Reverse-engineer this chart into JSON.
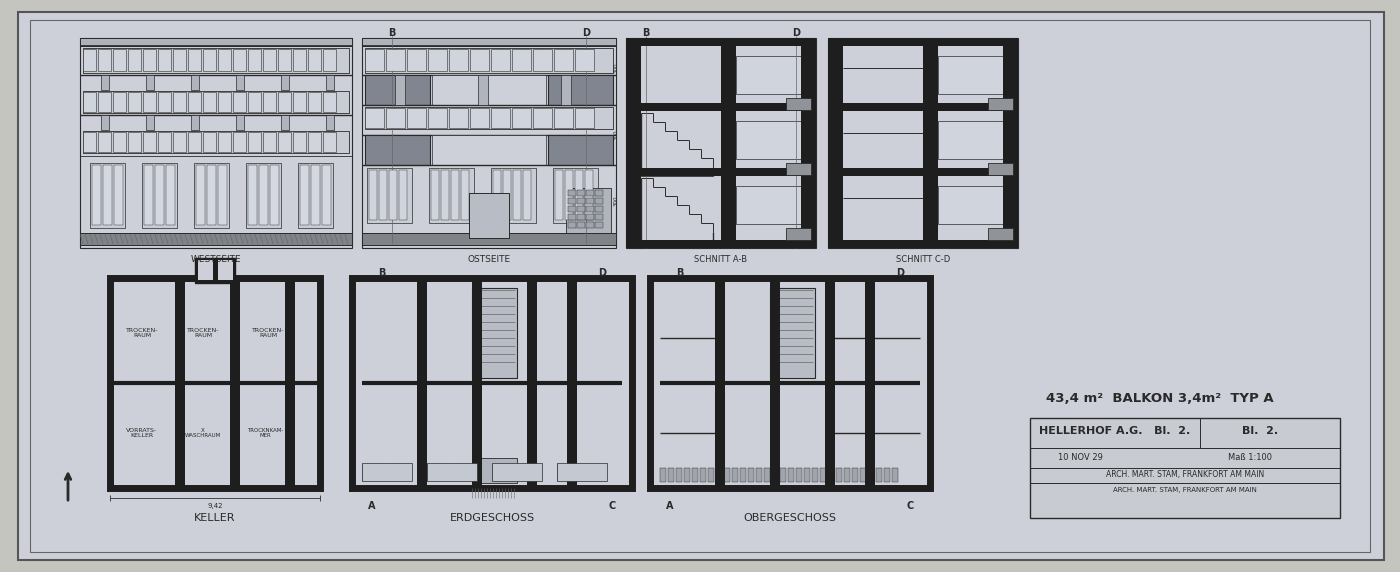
{
  "bg_outer": "#c4c5be",
  "bg_paper": "#cdd0d8",
  "lc": "#2a2a2a",
  "thick_fc": "#1e1e1e",
  "gray_fill": "#9a9da5",
  "light_fill": "#b8bcc5",
  "window_fill": "#d8dae0",
  "window_dark": "#8a8e96",
  "title_text": "43,4 m²  BALKON 3,4m²  TYP A",
  "sub1": "HELLERHOF A.G.   Bl.  2.",
  "sub2": "10 NOV 29",
  "sub3": "Maß 1:100",
  "sub4": "ARCH. MART. STAM, FRANKFORT AM MAIN",
  "lbl_west": "WESTSEITE",
  "lbl_ost": "OSTSEITE",
  "lbl_keller": "KELLER",
  "lbl_erd": "ERDGESCHOSS",
  "lbl_ober": "OBERGESCHOSS",
  "lbl_sAB": "SCHNITT A-B",
  "lbl_sCD": "SCHNITT C-D",
  "fig_w": 14.0,
  "fig_h": 5.72
}
